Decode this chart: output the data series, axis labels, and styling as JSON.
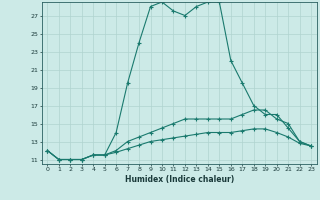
{
  "xlabel": "Humidex (Indice chaleur)",
  "ylabel": "",
  "background_color": "#cceae7",
  "grid_color": "#b0d4d0",
  "line_color": "#1a7a6e",
  "x_values": [
    0,
    1,
    2,
    3,
    4,
    5,
    6,
    7,
    8,
    9,
    10,
    11,
    12,
    13,
    14,
    15,
    16,
    17,
    18,
    19,
    20,
    21,
    22,
    23
  ],
  "line1_y": [
    12.0,
    11.0,
    11.0,
    11.0,
    11.5,
    11.5,
    14.0,
    19.5,
    24.0,
    28.0,
    28.5,
    27.5,
    27.0,
    28.0,
    28.5,
    28.5,
    22.0,
    19.5,
    17.0,
    16.0,
    16.0,
    14.5,
    13.0,
    12.5
  ],
  "line2_y": [
    12.0,
    11.0,
    11.0,
    11.0,
    11.5,
    11.5,
    12.0,
    13.0,
    13.5,
    14.0,
    14.5,
    15.0,
    15.5,
    15.5,
    15.5,
    15.5,
    15.5,
    16.0,
    16.5,
    16.5,
    15.5,
    15.0,
    13.0,
    12.5
  ],
  "line3_y": [
    12.0,
    11.0,
    11.0,
    11.0,
    11.5,
    11.5,
    11.8,
    12.2,
    12.6,
    13.0,
    13.2,
    13.4,
    13.6,
    13.8,
    14.0,
    14.0,
    14.0,
    14.2,
    14.4,
    14.4,
    14.0,
    13.5,
    12.8,
    12.5
  ],
  "xlim": [
    -0.5,
    23.5
  ],
  "ylim": [
    10.5,
    28.5
  ],
  "yticks": [
    11,
    13,
    15,
    17,
    19,
    21,
    23,
    25,
    27
  ],
  "xticks": [
    0,
    1,
    2,
    3,
    4,
    5,
    6,
    7,
    8,
    9,
    10,
    11,
    12,
    13,
    14,
    15,
    16,
    17,
    18,
    19,
    20,
    21,
    22,
    23
  ]
}
